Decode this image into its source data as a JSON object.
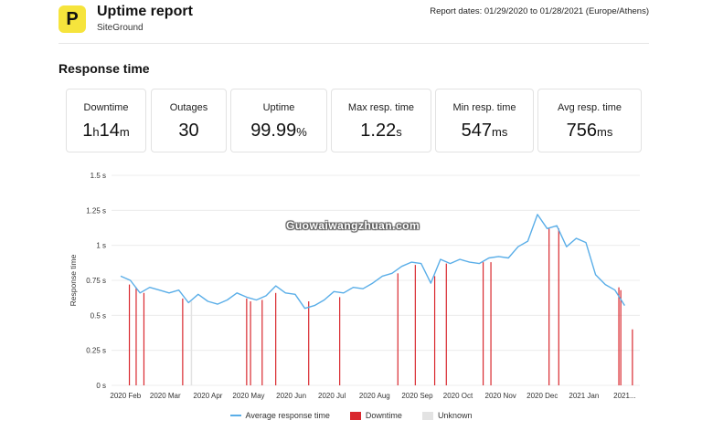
{
  "header": {
    "logo_letter": "P",
    "title": "Uptime report",
    "subtitle": "SiteGround",
    "report_dates": "Report dates: 01/29/2020 to 01/28/2021 (Europe/Athens)"
  },
  "section_title": "Response time",
  "stats": [
    {
      "label": "Downtime",
      "value": "1h14m"
    },
    {
      "label": "Outages",
      "value": "30"
    },
    {
      "label": "Uptime",
      "value": "99.99%"
    },
    {
      "label": "Max resp. time",
      "value": "1.22s"
    },
    {
      "label": "Min resp. time",
      "value": "547ms"
    },
    {
      "label": "Avg resp. time",
      "value": "756ms"
    }
  ],
  "watermark": "Guowaiwangzhuan.com",
  "chart_data": {
    "type": "line",
    "ylabel": "Response time",
    "ylim": [
      0,
      1.5
    ],
    "yticks": [
      "0 s",
      "0.25 s",
      "0.5 s",
      "0.75 s",
      "1 s",
      "1.25 s",
      "1.5 s"
    ],
    "yvalues": [
      0,
      0.25,
      0.5,
      0.75,
      1,
      1.25,
      1.5
    ],
    "xlim": [
      0,
      53
    ],
    "xticks": [
      {
        "label": "2020 Feb",
        "x": 0.5
      },
      {
        "label": "2020 Mar",
        "x": 4.6
      },
      {
        "label": "2020 Apr",
        "x": 9
      },
      {
        "label": "2020 May",
        "x": 13.2
      },
      {
        "label": "2020 Jun",
        "x": 17.6
      },
      {
        "label": "2020 Jul",
        "x": 21.8
      },
      {
        "label": "2020 Aug",
        "x": 26.2
      },
      {
        "label": "2020 Sep",
        "x": 30.6
      },
      {
        "label": "2020 Oct",
        "x": 34.8
      },
      {
        "label": "2020 Nov",
        "x": 39.2
      },
      {
        "label": "2020 Dec",
        "x": 43.5
      },
      {
        "label": "2021 Jan",
        "x": 47.8
      },
      {
        "label": "2021...",
        "x": 52
      }
    ],
    "series": [
      {
        "name": "Average response time",
        "color": "#5aaee8",
        "x": [
          0,
          1,
          2,
          3,
          4,
          5,
          6,
          7,
          8,
          9,
          10,
          11,
          12,
          13,
          14,
          15,
          16,
          17,
          18,
          19,
          20,
          21,
          22,
          23,
          24,
          25,
          26,
          27,
          28,
          29,
          30,
          31,
          32,
          33,
          34,
          35,
          36,
          37,
          38,
          39,
          40,
          41,
          42,
          43,
          44,
          45,
          46,
          47,
          48,
          49,
          50,
          51,
          52
        ],
        "y": [
          0.78,
          0.75,
          0.66,
          0.7,
          0.68,
          0.66,
          0.68,
          0.59,
          0.65,
          0.6,
          0.58,
          0.61,
          0.66,
          0.63,
          0.61,
          0.64,
          0.71,
          0.66,
          0.65,
          0.55,
          0.57,
          0.61,
          0.67,
          0.66,
          0.7,
          0.69,
          0.73,
          0.78,
          0.8,
          0.85,
          0.88,
          0.87,
          0.73,
          0.9,
          0.87,
          0.9,
          0.88,
          0.87,
          0.91,
          0.92,
          0.91,
          0.99,
          1.03,
          1.22,
          1.12,
          1.14,
          0.99,
          1.05,
          1.02,
          0.79,
          0.72,
          0.68,
          0.57
        ]
      }
    ],
    "downtime_events": {
      "name": "Downtime",
      "color": "#d9282e",
      "x": [
        0.9,
        1.6,
        2.4,
        6.4,
        13.0,
        13.4,
        14.6,
        16.0,
        19.4,
        22.6,
        28.6,
        30.4,
        32.4,
        33.6,
        37.4,
        38.2,
        44.2,
        45.2,
        51.4,
        51.6,
        52.8
      ],
      "heights": [
        0.72,
        0.7,
        0.66,
        0.62,
        0.62,
        0.6,
        0.61,
        0.66,
        0.6,
        0.63,
        0.8,
        0.86,
        0.78,
        0.87,
        0.88,
        0.88,
        1.12,
        1.12,
        0.7,
        0.68,
        0.4
      ]
    },
    "unknown_events": {
      "name": "Unknown",
      "color": "#e3e3e3",
      "x": [
        7.3
      ],
      "heights": [
        0.6
      ]
    },
    "legend": [
      {
        "label": "Average response time",
        "kind": "line",
        "color": "#5aaee8"
      },
      {
        "label": "Downtime",
        "kind": "box",
        "color": "#d9282e"
      },
      {
        "label": "Unknown",
        "kind": "box",
        "color": "#e3e3e3"
      }
    ]
  }
}
